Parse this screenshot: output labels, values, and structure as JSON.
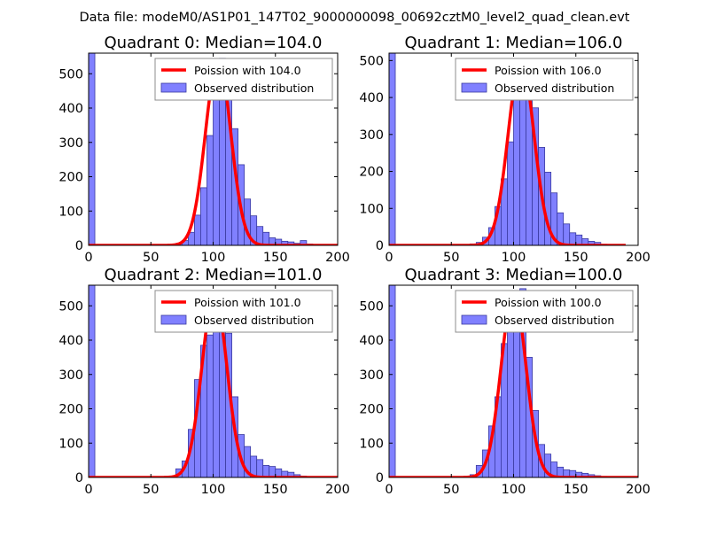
{
  "suptitle": "Data file: modeM0/AS1P01_147T02_9000000098_00692cztM0_level2_quad_clean.evt",
  "colors": {
    "poisson": "#ff0000",
    "bars_fill": "#8080ff",
    "bars_edge": "#3a3aa0",
    "axes": "#000000",
    "legend_edge": "#8c8c8c"
  },
  "chart_data": [
    {
      "type": "bar",
      "title": "Quadrant 0: Median=104.0",
      "xlim": [
        0,
        200
      ],
      "ylim": [
        0,
        560
      ],
      "xticks": [
        0,
        50,
        100,
        150,
        200
      ],
      "yticks": [
        0,
        100,
        200,
        300,
        400,
        500
      ],
      "legend_loc": "upper right",
      "legend": [
        "Poission with 104.0",
        "Observed distribution"
      ],
      "bin_width": 5,
      "bins": [
        [
          0,
          560
        ],
        [
          60,
          1
        ],
        [
          65,
          2
        ],
        [
          70,
          6
        ],
        [
          75,
          14
        ],
        [
          80,
          38
        ],
        [
          85,
          88
        ],
        [
          90,
          168
        ],
        [
          95,
          320
        ],
        [
          100,
          455
        ],
        [
          105,
          545
        ],
        [
          110,
          440
        ],
        [
          115,
          340
        ],
        [
          120,
          235
        ],
        [
          125,
          135
        ],
        [
          130,
          86
        ],
        [
          135,
          55
        ],
        [
          140,
          38
        ],
        [
          145,
          22
        ],
        [
          150,
          18
        ],
        [
          155,
          12
        ],
        [
          160,
          10
        ],
        [
          165,
          6
        ],
        [
          170,
          14
        ],
        [
          175,
          4
        ]
      ],
      "poisson": {
        "mean": 104.0,
        "peak": 540,
        "sigma": 10.2,
        "x_range": [
          0,
          200
        ]
      }
    },
    {
      "type": "bar",
      "title": "Quadrant 1: Median=106.0",
      "xlim": [
        0,
        200
      ],
      "ylim": [
        0,
        520
      ],
      "xticks": [
        0,
        50,
        100,
        150,
        200
      ],
      "yticks": [
        0,
        100,
        200,
        300,
        400,
        500
      ],
      "legend_loc": "upper right",
      "legend": [
        "Poission with 106.0",
        "Observed distribution"
      ],
      "bin_width": 5,
      "bins": [
        [
          0,
          520
        ],
        [
          65,
          4
        ],
        [
          70,
          8
        ],
        [
          75,
          22
        ],
        [
          80,
          48
        ],
        [
          85,
          105
        ],
        [
          90,
          180
        ],
        [
          95,
          280
        ],
        [
          100,
          395
        ],
        [
          105,
          490
        ],
        [
          110,
          440
        ],
        [
          115,
          372
        ],
        [
          120,
          265
        ],
        [
          125,
          198
        ],
        [
          130,
          142
        ],
        [
          135,
          88
        ],
        [
          140,
          58
        ],
        [
          145,
          34
        ],
        [
          150,
          28
        ],
        [
          155,
          18
        ],
        [
          160,
          11
        ],
        [
          165,
          8
        ],
        [
          170,
          3
        ]
      ],
      "poisson": {
        "mean": 106.0,
        "peak": 500,
        "sigma": 10.3,
        "x_range": [
          0,
          190
        ]
      }
    },
    {
      "type": "bar",
      "title": "Quadrant 2: Median=101.0",
      "xlim": [
        0,
        200
      ],
      "ylim": [
        0,
        560
      ],
      "xticks": [
        0,
        50,
        100,
        150,
        200
      ],
      "yticks": [
        0,
        100,
        200,
        300,
        400,
        500
      ],
      "legend_loc": "upper right",
      "legend": [
        "Poission with 101.0",
        "Observed distribution"
      ],
      "bin_width": 5,
      "bins": [
        [
          0,
          560
        ],
        [
          60,
          1
        ],
        [
          65,
          3
        ],
        [
          70,
          25
        ],
        [
          75,
          48
        ],
        [
          80,
          140
        ],
        [
          85,
          285
        ],
        [
          90,
          385
        ],
        [
          95,
          415
        ],
        [
          100,
          515
        ],
        [
          105,
          500
        ],
        [
          110,
          420
        ],
        [
          115,
          235
        ],
        [
          120,
          125
        ],
        [
          125,
          90
        ],
        [
          130,
          62
        ],
        [
          135,
          52
        ],
        [
          140,
          35
        ],
        [
          145,
          32
        ],
        [
          150,
          25
        ],
        [
          155,
          18
        ],
        [
          160,
          15
        ],
        [
          165,
          8
        ],
        [
          170,
          4
        ]
      ],
      "poisson": {
        "mean": 101.0,
        "peak": 535,
        "sigma": 10.0,
        "x_range": [
          0,
          200
        ]
      }
    },
    {
      "type": "bar",
      "title": "Quadrant 3: Median=100.0",
      "xlim": [
        0,
        200
      ],
      "ylim": [
        0,
        560
      ],
      "xticks": [
        0,
        50,
        100,
        150,
        200
      ],
      "yticks": [
        0,
        100,
        200,
        300,
        400,
        500
      ],
      "legend_loc": "upper right",
      "legend": [
        "Poission with 100.0",
        "Observed distribution"
      ],
      "bin_width": 5,
      "bins": [
        [
          0,
          560
        ],
        [
          60,
          1
        ],
        [
          65,
          8
        ],
        [
          70,
          35
        ],
        [
          75,
          80
        ],
        [
          80,
          150
        ],
        [
          85,
          235
        ],
        [
          90,
          390
        ],
        [
          95,
          460
        ],
        [
          100,
          520
        ],
        [
          105,
          550
        ],
        [
          110,
          350
        ],
        [
          115,
          195
        ],
        [
          120,
          96
        ],
        [
          125,
          68
        ],
        [
          130,
          45
        ],
        [
          135,
          30
        ],
        [
          140,
          22
        ],
        [
          145,
          20
        ],
        [
          150,
          15
        ],
        [
          155,
          12
        ],
        [
          160,
          8
        ],
        [
          165,
          5
        ],
        [
          170,
          3
        ]
      ],
      "poisson": {
        "mean": 100.0,
        "peak": 535,
        "sigma": 10.0,
        "x_range": [
          0,
          200
        ]
      }
    }
  ]
}
